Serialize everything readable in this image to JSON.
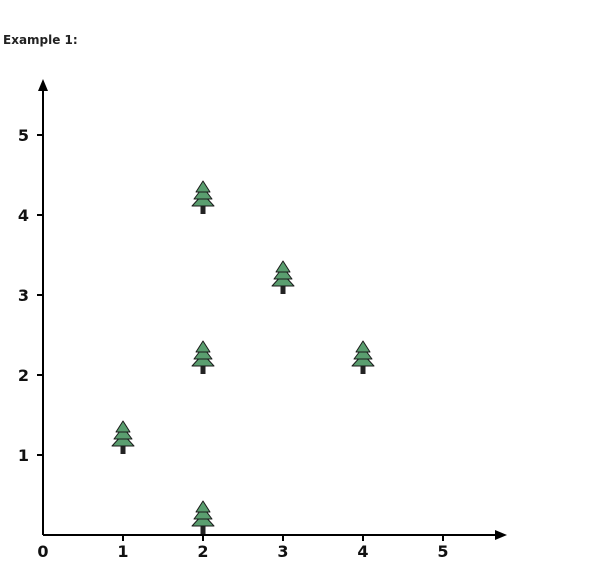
{
  "heading": "Example 1:",
  "chart_data": {
    "type": "scatter",
    "marker": "tree-icon",
    "x_ticks": [
      "0",
      "1",
      "2",
      "3",
      "4",
      "5"
    ],
    "y_ticks": [
      "1",
      "2",
      "3",
      "4",
      "5"
    ],
    "xlim": [
      0,
      5.8
    ],
    "ylim": [
      0,
      5.7
    ],
    "points": [
      {
        "x": 1,
        "y": 1
      },
      {
        "x": 2,
        "y": 2
      },
      {
        "x": 3,
        "y": 3
      },
      {
        "x": 2,
        "y": 0
      },
      {
        "x": 2,
        "y": 4
      },
      {
        "x": 4,
        "y": 2
      }
    ],
    "colors": {
      "tree_fill": "#5a9e6f",
      "tree_stroke": "#1b1b1b",
      "trunk": "#222222",
      "axis": "#000000"
    }
  }
}
